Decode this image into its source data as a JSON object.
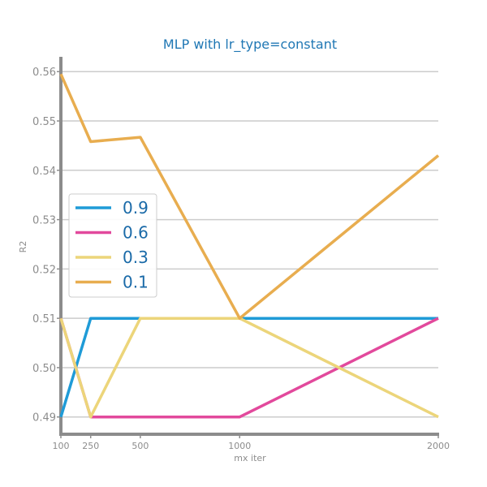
{
  "colors": {
    "title": "#1f77b4",
    "axis": "#8c8c8c",
    "grid": "#cccccc",
    "legend_text": "#1a6aa8"
  },
  "chart_data": {
    "type": "line",
    "title": "MLP with lr_type=constant",
    "xlabel": "mx iter",
    "ylabel": "R2",
    "x": [
      100,
      250,
      500,
      1000,
      2000
    ],
    "x_ticks": [
      "100",
      "250",
      "500",
      "1000",
      "2000"
    ],
    "xlim": [
      100,
      2000
    ],
    "ylim": [
      0.4865,
      0.563
    ],
    "y_ticks": [
      "0.49",
      "0.50",
      "0.51",
      "0.52",
      "0.53",
      "0.54",
      "0.55",
      "0.56"
    ],
    "grid": "horizontal",
    "legend_position": "center-left",
    "series": [
      {
        "name": "0.9",
        "color": "#1f9bd7",
        "values": [
          0.49,
          0.51,
          0.51,
          0.51,
          0.51
        ]
      },
      {
        "name": "0.6",
        "color": "#e2499c",
        "values": [
          0.51,
          0.49,
          0.49,
          0.49,
          0.51
        ]
      },
      {
        "name": "0.3",
        "color": "#ecd57a",
        "values": [
          0.51,
          0.49,
          0.51,
          0.51,
          0.49
        ]
      },
      {
        "name": "0.1",
        "color": "#e8ad4f",
        "values": [
          0.5595,
          0.5458,
          0.5467,
          0.51,
          0.543
        ]
      }
    ]
  }
}
